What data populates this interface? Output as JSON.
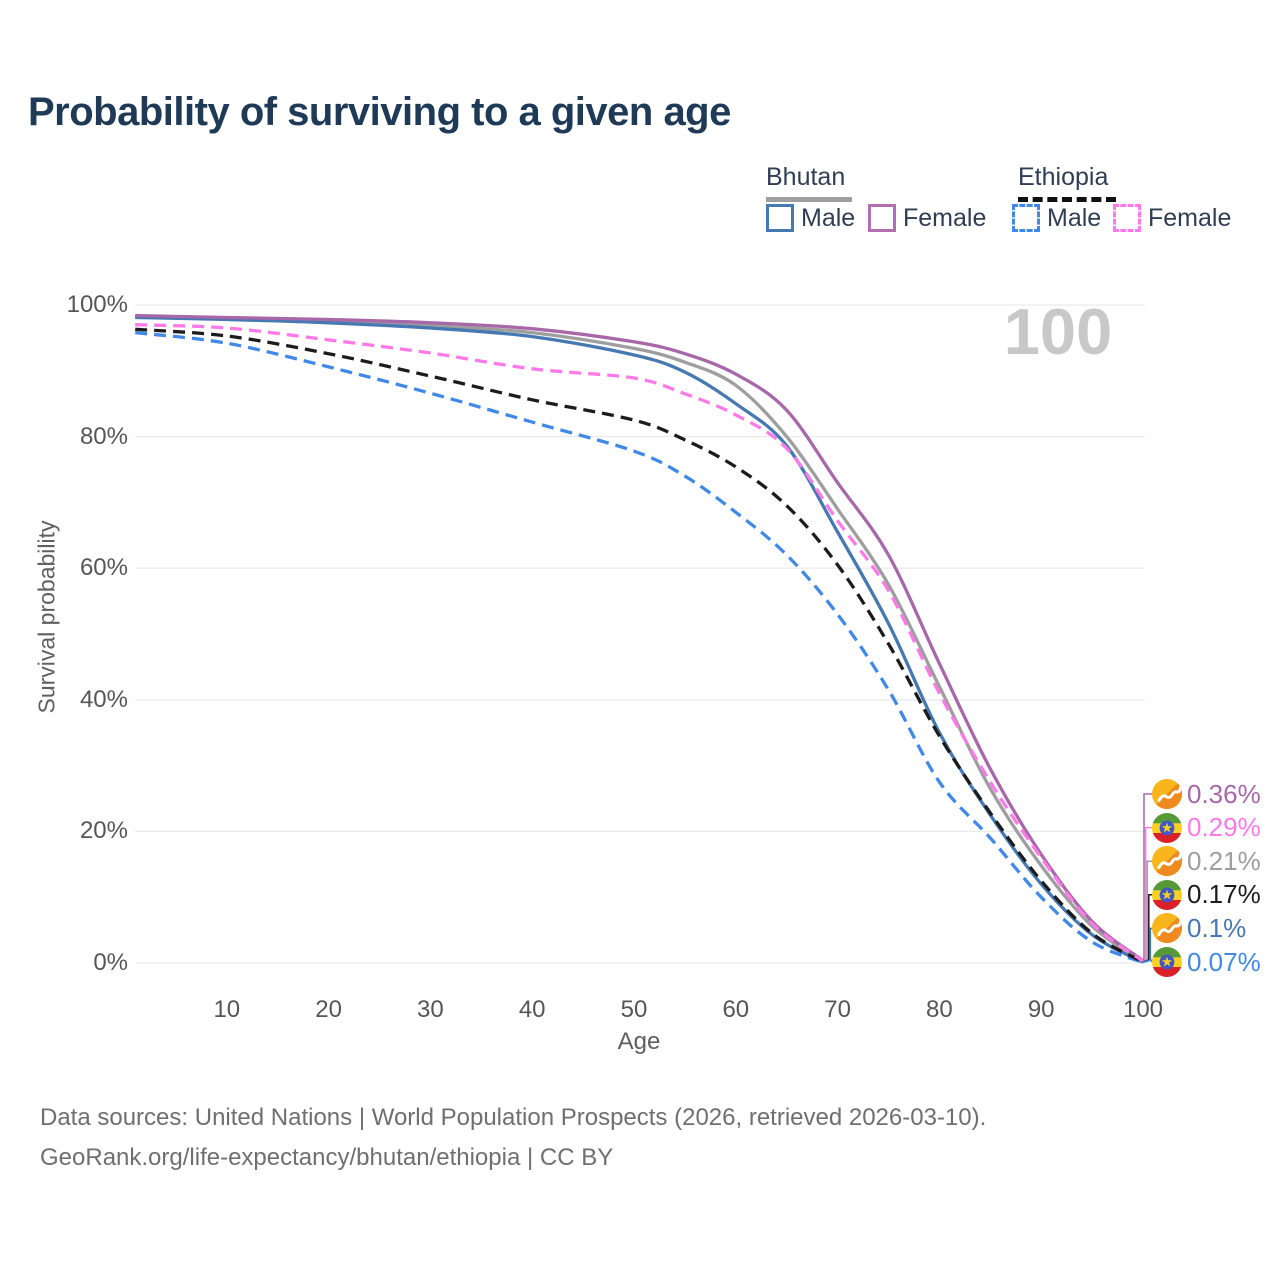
{
  "page": {
    "title": "Probability of surviving to a given age"
  },
  "legend": {
    "groups": [
      {
        "label": "Bhutan",
        "line_style": "solid",
        "line_color": "#9e9e9e",
        "items": [
          {
            "label": "Male",
            "swatch_color": "#4678b2"
          },
          {
            "label": "Female",
            "swatch_color": "#b06fae"
          }
        ]
      },
      {
        "label": "Ethiopia",
        "line_style": "dashed",
        "line_color": "#111111",
        "items": [
          {
            "label": "Male",
            "swatch_color": "#4189e8"
          },
          {
            "label": "Female",
            "swatch_color": "#ff7ae8"
          }
        ]
      }
    ]
  },
  "chart_data": {
    "type": "line",
    "title": "Probability of surviving to a given age",
    "xlabel": "Age",
    "ylabel": "Survival probability",
    "xlim": [
      1,
      100
    ],
    "ylim": [
      0,
      100
    ],
    "grid": true,
    "grid_color": "#e9e9e9",
    "grid_percents": [
      0,
      20,
      40,
      60,
      80,
      100
    ],
    "x_ticks": [
      10,
      20,
      30,
      40,
      50,
      60,
      70,
      80,
      90,
      100
    ],
    "y_ticks": [
      {
        "value": 0,
        "label": "0%"
      },
      {
        "value": 20,
        "label": "20%"
      },
      {
        "value": 40,
        "label": "40%"
      },
      {
        "value": 60,
        "label": "60%"
      },
      {
        "value": 80,
        "label": "80%"
      },
      {
        "value": 100,
        "label": "100%"
      }
    ],
    "hover_age_label": "100",
    "ages": [
      1,
      10,
      20,
      30,
      40,
      50,
      55,
      60,
      65,
      70,
      75,
      80,
      85,
      90,
      95,
      100
    ],
    "draw_order": [
      2,
      4,
      0,
      5,
      3,
      1
    ],
    "series": [
      {
        "id": "bhutan-female",
        "name": "Bhutan Female",
        "country": "bhutan",
        "style": "solid",
        "color": "#a767a9",
        "end_label": "0.36%",
        "values": [
          98.4,
          98.1,
          97.8,
          97.3,
          96.4,
          94.4,
          92.6,
          89.5,
          84.0,
          73.0,
          62.0,
          45.5,
          29.5,
          16.5,
          6.3,
          0.36
        ]
      },
      {
        "id": "ethiopia-female",
        "name": "Ethiopia Female",
        "country": "ethiopia",
        "style": "dashed",
        "color": "#ff7ae8",
        "end_label": "0.29%",
        "values": [
          97.0,
          96.5,
          94.7,
          92.7,
          90.3,
          88.9,
          86.5,
          83.3,
          78.2,
          67.2,
          56.6,
          41.0,
          27.5,
          16.0,
          6.0,
          0.29
        ]
      },
      {
        "id": "bhutan-both",
        "name": "Bhutan Both sexes",
        "country": "bhutan",
        "style": "solid",
        "color": "#9e9e9e",
        "end_label": "0.21%",
        "values": [
          98.2,
          97.9,
          97.5,
          96.9,
          95.8,
          93.4,
          91.3,
          87.8,
          80.0,
          69.0,
          57.5,
          42.0,
          26.5,
          14.8,
          5.6,
          0.21
        ]
      },
      {
        "id": "ethiopia-both",
        "name": "Ethiopia Both sexes",
        "country": "ethiopia",
        "style": "dashed",
        "color": "#1c1c1c",
        "end_label": "0.17%",
        "values": [
          96.3,
          95.3,
          92.6,
          89.2,
          85.6,
          82.5,
          79.5,
          75.4,
          69.5,
          60.5,
          48.5,
          34.5,
          22.8,
          12.5,
          4.5,
          0.17
        ]
      },
      {
        "id": "bhutan-male",
        "name": "Bhutan Male",
        "country": "bhutan",
        "style": "solid",
        "color": "#4678b2",
        "end_label": "0.1%",
        "values": [
          98.1,
          97.8,
          97.3,
          96.5,
          95.2,
          92.4,
          89.8,
          85.0,
          78.6,
          65.5,
          51.6,
          35.0,
          22.5,
          12.0,
          4.3,
          0.1
        ]
      },
      {
        "id": "ethiopia-male",
        "name": "Ethiopia Male",
        "country": "ethiopia",
        "style": "dashed",
        "color": "#4189e8",
        "end_label": "0.07%",
        "values": [
          95.8,
          94.2,
          90.6,
          86.6,
          82.2,
          77.8,
          74.0,
          68.5,
          62.0,
          53.0,
          41.5,
          27.5,
          19.0,
          10.0,
          3.2,
          0.07
        ]
      }
    ]
  },
  "footer": {
    "line1": "Data sources: United Nations | World Population Prospects (2026, retrieved 2026-03-10).",
    "line2": "GeoRank.org/life-expectancy/bhutan/ethiopia | CC BY"
  }
}
